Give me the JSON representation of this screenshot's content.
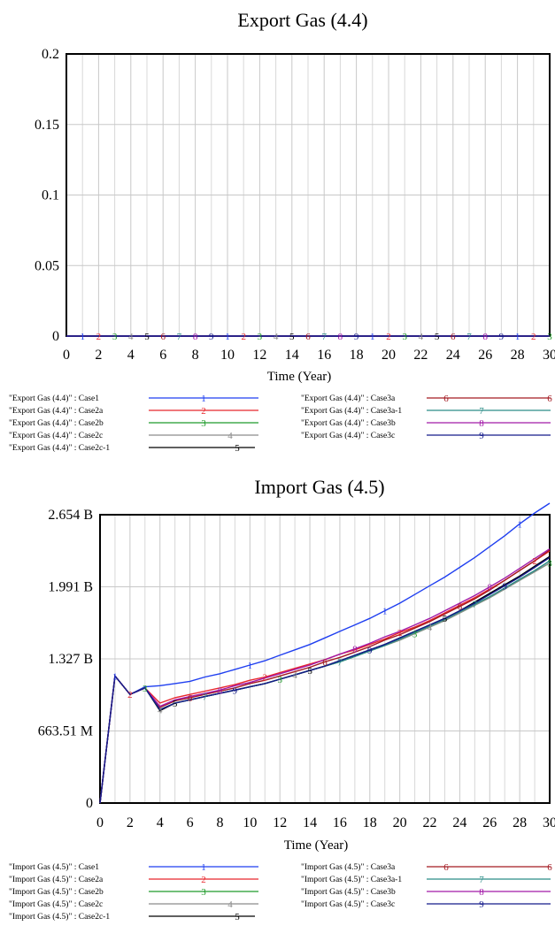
{
  "colors": {
    "Case1": "#1f3ff0",
    "Case2a": "#e8262c",
    "Case2b": "#1f9a2a",
    "Case2c": "#8c8c8c",
    "Case2c-1": "#000000",
    "Case3a": "#a31a22",
    "Case3a-1": "#2a8c86",
    "Case3b": "#a21aa8",
    "Case3c": "#141a8a"
  },
  "chart_data": [
    {
      "type": "line",
      "title": "Export Gas (4.4)",
      "xlabel": "Time (Year)",
      "ylabel": "",
      "xlim": [
        0,
        30
      ],
      "ylim": [
        0,
        0.2
      ],
      "x_ticks": [
        "0",
        "2",
        "4",
        "6",
        "8",
        "10",
        "12",
        "14",
        "16",
        "18",
        "20",
        "22",
        "24",
        "26",
        "28",
        "30"
      ],
      "y_ticks": [
        {
          "value": 0,
          "label": "0"
        },
        {
          "value": 0.05,
          "label": "0.05"
        },
        {
          "value": 0.1,
          "label": "0.1"
        },
        {
          "value": 0.15,
          "label": "0.15"
        },
        {
          "value": 0.2,
          "label": "0.2"
        }
      ],
      "grid": true,
      "x": [
        0,
        1,
        2,
        3,
        4,
        5,
        6,
        7,
        8,
        9,
        10,
        11,
        12,
        13,
        14,
        15,
        16,
        17,
        18,
        19,
        20,
        21,
        22,
        23,
        24,
        25,
        26,
        27,
        28,
        29,
        30
      ],
      "series": [
        {
          "name": "\"Export Gas (4.4)\" : Case1",
          "marker": "1",
          "values": [
            0,
            0,
            0,
            0,
            0,
            0,
            0,
            0,
            0,
            0,
            0,
            0,
            0,
            0,
            0,
            0,
            0,
            0,
            0,
            0,
            0,
            0,
            0,
            0,
            0,
            0,
            0,
            0,
            0,
            0,
            0
          ]
        },
        {
          "name": "\"Export Gas (4.4)\" : Case2a",
          "marker": "2",
          "values": [
            0,
            0,
            0,
            0,
            0,
            0,
            0,
            0,
            0,
            0,
            0,
            0,
            0,
            0,
            0,
            0,
            0,
            0,
            0,
            0,
            0,
            0,
            0,
            0,
            0,
            0,
            0,
            0,
            0,
            0,
            0
          ]
        },
        {
          "name": "\"Export Gas (4.4)\" : Case2b",
          "marker": "3",
          "values": [
            0,
            0,
            0,
            0,
            0,
            0,
            0,
            0,
            0,
            0,
            0,
            0,
            0,
            0,
            0,
            0,
            0,
            0,
            0,
            0,
            0,
            0,
            0,
            0,
            0,
            0,
            0,
            0,
            0,
            0,
            0
          ]
        },
        {
          "name": "\"Export Gas (4.4)\" : Case2c",
          "marker": "4",
          "values": [
            0,
            0,
            0,
            0,
            0,
            0,
            0,
            0,
            0,
            0,
            0,
            0,
            0,
            0,
            0,
            0,
            0,
            0,
            0,
            0,
            0,
            0,
            0,
            0,
            0,
            0,
            0,
            0,
            0,
            0,
            0
          ]
        },
        {
          "name": "\"Export Gas (4.4)\" : Case2c-1",
          "marker": "5",
          "values": [
            0,
            0,
            0,
            0,
            0,
            0,
            0,
            0,
            0,
            0,
            0,
            0,
            0,
            0,
            0,
            0,
            0,
            0,
            0,
            0,
            0,
            0,
            0,
            0,
            0,
            0,
            0,
            0,
            0,
            0,
            0
          ]
        },
        {
          "name": "\"Export Gas (4.4)\" : Case3a",
          "marker": "6",
          "values": [
            0,
            0,
            0,
            0,
            0,
            0,
            0,
            0,
            0,
            0,
            0,
            0,
            0,
            0,
            0,
            0,
            0,
            0,
            0,
            0,
            0,
            0,
            0,
            0,
            0,
            0,
            0,
            0,
            0,
            0,
            0
          ]
        },
        {
          "name": "\"Export Gas (4.4)\" : Case3a-1",
          "marker": "7",
          "values": [
            0,
            0,
            0,
            0,
            0,
            0,
            0,
            0,
            0,
            0,
            0,
            0,
            0,
            0,
            0,
            0,
            0,
            0,
            0,
            0,
            0,
            0,
            0,
            0,
            0,
            0,
            0,
            0,
            0,
            0,
            0
          ]
        },
        {
          "name": "\"Export Gas (4.4)\" : Case3b",
          "marker": "8",
          "values": [
            0,
            0,
            0,
            0,
            0,
            0,
            0,
            0,
            0,
            0,
            0,
            0,
            0,
            0,
            0,
            0,
            0,
            0,
            0,
            0,
            0,
            0,
            0,
            0,
            0,
            0,
            0,
            0,
            0,
            0,
            0
          ]
        },
        {
          "name": "\"Export Gas (4.4)\" : Case3c",
          "marker": "9",
          "values": [
            0,
            0,
            0,
            0,
            0,
            0,
            0,
            0,
            0,
            0,
            0,
            0,
            0,
            0,
            0,
            0,
            0,
            0,
            0,
            0,
            0,
            0,
            0,
            0,
            0,
            0,
            0,
            0,
            0,
            0,
            0
          ]
        }
      ]
    },
    {
      "type": "line",
      "title": "Import Gas (4.5)",
      "xlabel": "Time (Year)",
      "ylabel": "",
      "xlim": [
        0,
        30
      ],
      "ylim": [
        0,
        2.654
      ],
      "y_unit": "billions",
      "x_ticks": [
        "0",
        "2",
        "4",
        "6",
        "8",
        "10",
        "12",
        "14",
        "16",
        "18",
        "20",
        "22",
        "24",
        "26",
        "28",
        "30"
      ],
      "y_ticks": [
        {
          "value": 0,
          "label": "0"
        },
        {
          "value": 0.66351,
          "label": "663.51 M"
        },
        {
          "value": 1.327,
          "label": "1.327 B"
        },
        {
          "value": 1.991,
          "label": "1.991 B"
        },
        {
          "value": 2.654,
          "label": "2.654 B"
        }
      ],
      "grid": true,
      "x": [
        0,
        1,
        2,
        3,
        4,
        5,
        6,
        7,
        8,
        9,
        10,
        11,
        12,
        13,
        14,
        15,
        16,
        17,
        18,
        19,
        20,
        21,
        22,
        23,
        24,
        25,
        26,
        27,
        28,
        29,
        30
      ],
      "series": [
        {
          "name": "\"Import Gas (4.5)\" : Case1",
          "marker": "1",
          "values": [
            0,
            1.17,
            1.0,
            1.07,
            1.08,
            1.1,
            1.12,
            1.16,
            1.19,
            1.23,
            1.27,
            1.31,
            1.36,
            1.41,
            1.46,
            1.52,
            1.58,
            1.64,
            1.7,
            1.77,
            1.84,
            1.92,
            2.0,
            2.08,
            2.17,
            2.26,
            2.36,
            2.46,
            2.57,
            2.67,
            2.76
          ]
        },
        {
          "name": "\"Import Gas (4.5)\" : Case2a",
          "marker": "2",
          "values": [
            0,
            1.17,
            1.0,
            1.06,
            0.92,
            0.97,
            1.0,
            1.03,
            1.06,
            1.09,
            1.13,
            1.16,
            1.2,
            1.24,
            1.28,
            1.32,
            1.37,
            1.41,
            1.46,
            1.51,
            1.57,
            1.62,
            1.68,
            1.75,
            1.82,
            1.89,
            1.97,
            2.05,
            2.14,
            2.23,
            2.32
          ]
        },
        {
          "name": "\"Import Gas (4.5)\" : Case2b",
          "marker": "3",
          "values": [
            0,
            1.17,
            1.0,
            1.06,
            0.86,
            0.92,
            0.95,
            0.98,
            1.01,
            1.04,
            1.07,
            1.1,
            1.14,
            1.18,
            1.22,
            1.26,
            1.3,
            1.35,
            1.4,
            1.45,
            1.5,
            1.56,
            1.62,
            1.68,
            1.75,
            1.82,
            1.89,
            1.97,
            2.05,
            2.13,
            2.21
          ]
        },
        {
          "name": "\"Import Gas (4.5)\" : Case2c",
          "marker": "4",
          "values": [
            0,
            1.17,
            1.0,
            1.06,
            0.86,
            0.92,
            0.95,
            0.98,
            1.01,
            1.04,
            1.07,
            1.1,
            1.14,
            1.18,
            1.22,
            1.26,
            1.3,
            1.35,
            1.4,
            1.45,
            1.5,
            1.56,
            1.62,
            1.68,
            1.75,
            1.82,
            1.89,
            1.97,
            2.05,
            2.13,
            2.21
          ]
        },
        {
          "name": "\"Import Gas (4.5)\" : Case2c-1",
          "marker": "5",
          "values": [
            0,
            1.17,
            1.0,
            1.06,
            0.85,
            0.92,
            0.95,
            0.98,
            1.01,
            1.04,
            1.07,
            1.1,
            1.14,
            1.18,
            1.22,
            1.26,
            1.31,
            1.36,
            1.41,
            1.46,
            1.52,
            1.58,
            1.64,
            1.7,
            1.77,
            1.85,
            1.93,
            2.01,
            2.09,
            2.18,
            2.27
          ]
        },
        {
          "name": "\"Import Gas (4.5)\" : Case3a",
          "marker": "6",
          "values": [
            0,
            1.17,
            1.0,
            1.06,
            0.88,
            0.94,
            0.97,
            1.0,
            1.03,
            1.06,
            1.1,
            1.13,
            1.17,
            1.21,
            1.25,
            1.3,
            1.34,
            1.39,
            1.44,
            1.5,
            1.55,
            1.61,
            1.67,
            1.74,
            1.81,
            1.88,
            1.96,
            2.05,
            2.14,
            2.23,
            2.33
          ]
        },
        {
          "name": "\"Import Gas (4.5)\" : Case3a-1",
          "marker": "7",
          "values": [
            0,
            1.17,
            1.0,
            1.06,
            0.86,
            0.92,
            0.95,
            0.98,
            1.01,
            1.04,
            1.07,
            1.1,
            1.14,
            1.18,
            1.22,
            1.26,
            1.3,
            1.35,
            1.4,
            1.45,
            1.51,
            1.57,
            1.63,
            1.69,
            1.76,
            1.83,
            1.9,
            1.98,
            2.06,
            2.14,
            2.23
          ]
        },
        {
          "name": "\"Import Gas (4.5)\" : Case3b",
          "marker": "8",
          "values": [
            0,
            1.17,
            1.0,
            1.06,
            0.89,
            0.95,
            0.98,
            1.01,
            1.04,
            1.08,
            1.11,
            1.15,
            1.19,
            1.23,
            1.27,
            1.32,
            1.37,
            1.42,
            1.47,
            1.53,
            1.58,
            1.64,
            1.7,
            1.77,
            1.84,
            1.91,
            1.99,
            2.07,
            2.16,
            2.25,
            2.34
          ]
        },
        {
          "name": "\"Import Gas (4.5)\" : Case3c",
          "marker": "9",
          "values": [
            0,
            1.17,
            1.0,
            1.06,
            0.86,
            0.92,
            0.95,
            0.98,
            1.01,
            1.04,
            1.07,
            1.1,
            1.14,
            1.18,
            1.22,
            1.26,
            1.31,
            1.36,
            1.41,
            1.46,
            1.52,
            1.58,
            1.64,
            1.7,
            1.77,
            1.84,
            1.92,
            2.0,
            2.08,
            2.17,
            2.26
          ]
        }
      ]
    }
  ]
}
